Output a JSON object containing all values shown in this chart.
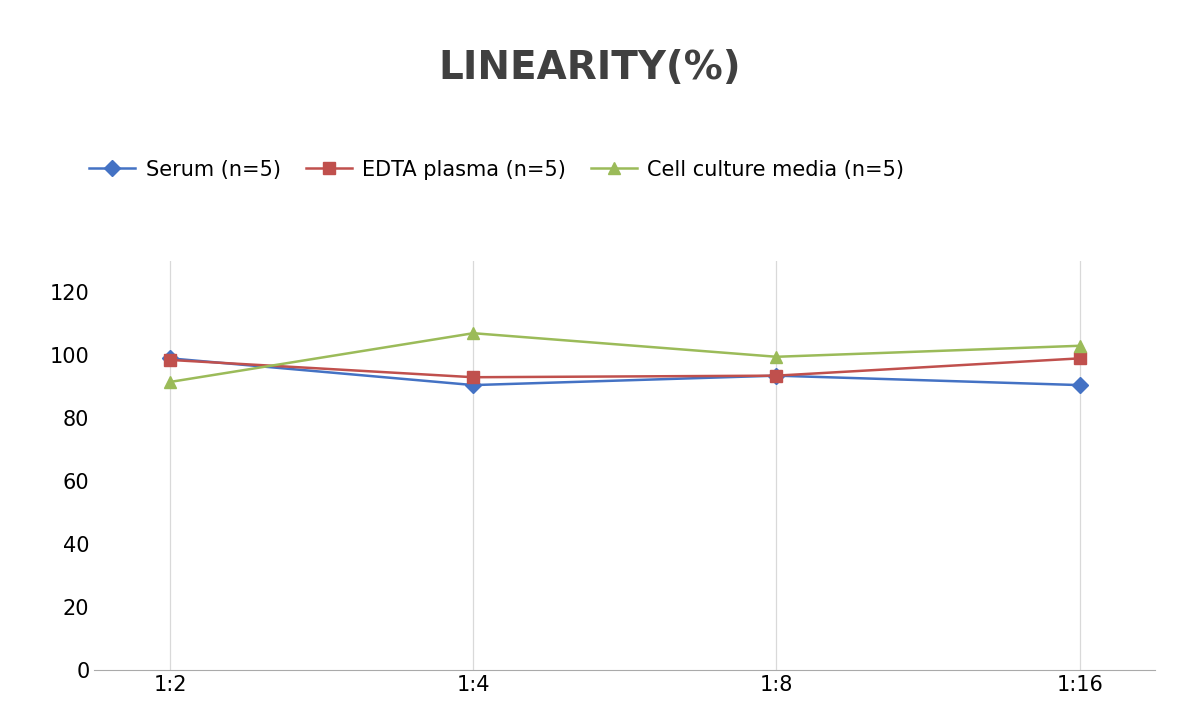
{
  "title": "LINEARITY(%)",
  "title_fontsize": 28,
  "title_fontweight": "bold",
  "title_color": "#404040",
  "x_labels": [
    "1:2",
    "1:4",
    "1:8",
    "1:16"
  ],
  "x_positions": [
    0,
    1,
    2,
    3
  ],
  "series": [
    {
      "label": "Serum (n=5)",
      "color": "#4472C4",
      "marker": "D",
      "markersize": 8,
      "values": [
        99.0,
        90.5,
        93.5,
        90.5
      ]
    },
    {
      "label": "EDTA plasma (n=5)",
      "color": "#C0504D",
      "marker": "s",
      "markersize": 8,
      "values": [
        98.5,
        93.0,
        93.5,
        99.0
      ]
    },
    {
      "label": "Cell culture media (n=5)",
      "color": "#9BBB59",
      "marker": "^",
      "markersize": 9,
      "values": [
        91.5,
        107.0,
        99.5,
        103.0
      ]
    }
  ],
  "ylim": [
    0,
    130
  ],
  "yticks": [
    0,
    20,
    40,
    60,
    80,
    100,
    120
  ],
  "grid_color": "#D9D9D9",
  "background_color": "#FFFFFF",
  "legend_fontsize": 15,
  "tick_fontsize": 15,
  "linewidth": 1.8
}
